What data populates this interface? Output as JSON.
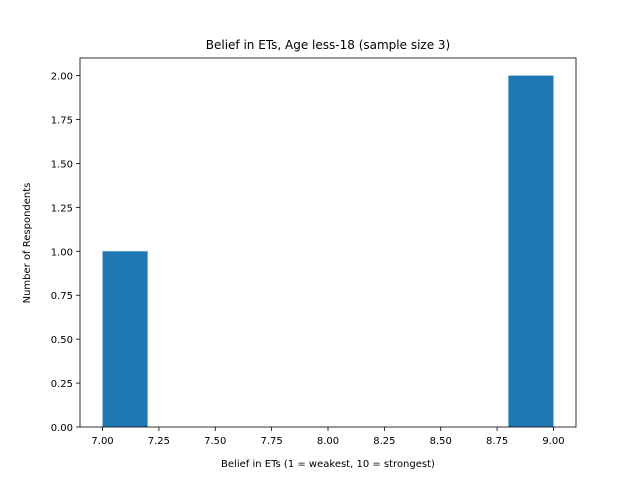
{
  "chart_data": {
    "type": "bar",
    "title": "Belief in ETs, Age less-18 (sample size 3)",
    "xlabel": "Belief in ETs (1 = weakest, 10 = strongest)",
    "ylabel": "Number of Respondents",
    "xlim": [
      6.9,
      9.1
    ],
    "ylim": [
      0,
      2.1
    ],
    "xticks": [
      "7.00",
      "7.25",
      "7.50",
      "7.75",
      "8.00",
      "8.25",
      "8.50",
      "8.75",
      "9.00"
    ],
    "yticks": [
      "0.00",
      "0.25",
      "0.50",
      "0.75",
      "1.00",
      "1.25",
      "1.50",
      "1.75",
      "2.00"
    ],
    "bins": [
      {
        "x0": 7.0,
        "x1": 7.2,
        "count": 1
      },
      {
        "x0": 7.2,
        "x1": 7.4,
        "count": 0
      },
      {
        "x0": 7.4,
        "x1": 7.6,
        "count": 0
      },
      {
        "x0": 7.6,
        "x1": 7.8,
        "count": 0
      },
      {
        "x0": 7.8,
        "x1": 8.0,
        "count": 0
      },
      {
        "x0": 8.0,
        "x1": 8.2,
        "count": 0
      },
      {
        "x0": 8.2,
        "x1": 8.4,
        "count": 0
      },
      {
        "x0": 8.4,
        "x1": 8.6,
        "count": 0
      },
      {
        "x0": 8.6,
        "x1": 8.8,
        "count": 0
      },
      {
        "x0": 8.8,
        "x1": 9.0,
        "count": 2
      }
    ],
    "bar_color": "#1f77b4",
    "grid": false,
    "legend": "none"
  }
}
